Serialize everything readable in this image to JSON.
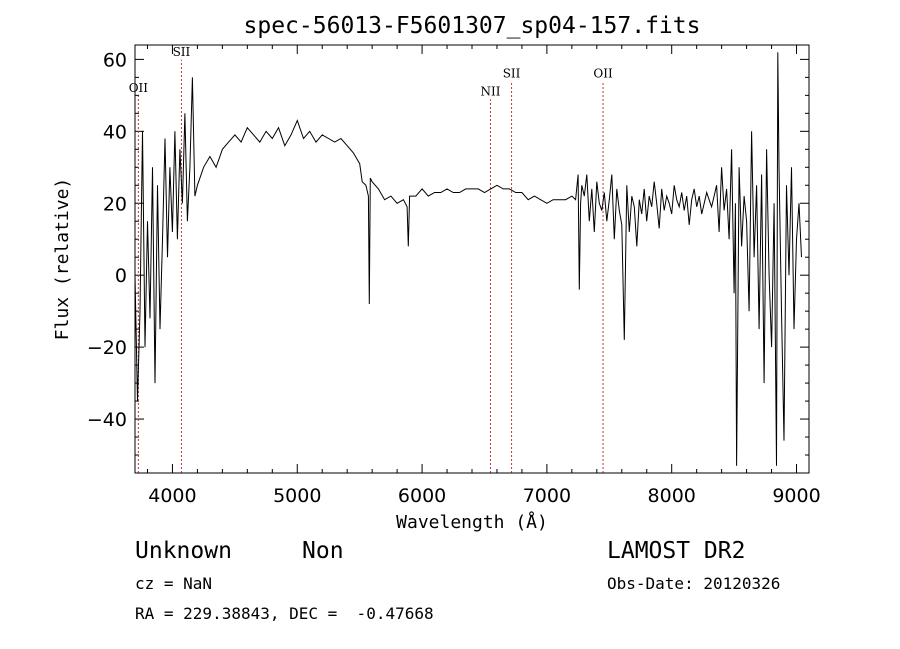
{
  "chart_data": {
    "type": "line",
    "title": "spec-56013-F5601307_sp04-157.fits",
    "xlabel": "Wavelength (Å)",
    "ylabel": "Flux (relative)",
    "xlim": [
      3700,
      9100
    ],
    "ylim": [
      -55,
      64
    ],
    "xticks": [
      4000,
      5000,
      6000,
      7000,
      8000,
      9000
    ],
    "yticks": [
      -40,
      -20,
      0,
      20,
      40,
      60
    ],
    "grid": false,
    "series": [
      {
        "color": "#000000",
        "x": [
          3700,
          3720,
          3740,
          3760,
          3780,
          3800,
          3820,
          3840,
          3860,
          3880,
          3900,
          3920,
          3940,
          3960,
          3980,
          4000,
          4020,
          4040,
          4060,
          4080,
          4100,
          4120,
          4140,
          4160,
          4180,
          4200,
          4250,
          4300,
          4350,
          4400,
          4450,
          4500,
          4550,
          4600,
          4650,
          4700,
          4750,
          4800,
          4850,
          4900,
          4950,
          5000,
          5050,
          5100,
          5150,
          5200,
          5250,
          5300,
          5350,
          5400,
          5450,
          5500,
          5520,
          5550,
          5570,
          5577,
          5585,
          5600,
          5650,
          5700,
          5750,
          5800,
          5850,
          5880,
          5890,
          5900,
          5950,
          6000,
          6050,
          6100,
          6150,
          6200,
          6250,
          6300,
          6350,
          6400,
          6450,
          6500,
          6550,
          6600,
          6650,
          6700,
          6750,
          6800,
          6850,
          6900,
          6950,
          7000,
          7050,
          7100,
          7150,
          7200,
          7230,
          7250,
          7260,
          7270,
          7280,
          7300,
          7320,
          7340,
          7360,
          7380,
          7400,
          7420,
          7440,
          7460,
          7480,
          7500,
          7520,
          7540,
          7560,
          7580,
          7600,
          7620,
          7640,
          7660,
          7680,
          7700,
          7720,
          7740,
          7760,
          7780,
          7800,
          7820,
          7840,
          7860,
          7880,
          7900,
          7920,
          7940,
          7960,
          7980,
          8000,
          8020,
          8040,
          8060,
          8080,
          8100,
          8120,
          8140,
          8160,
          8180,
          8200,
          8220,
          8240,
          8260,
          8280,
          8300,
          8320,
          8340,
          8360,
          8380,
          8400,
          8420,
          8440,
          8460,
          8480,
          8500,
          8510,
          8520,
          8540,
          8560,
          8580,
          8600,
          8620,
          8640,
          8660,
          8680,
          8700,
          8720,
          8740,
          8760,
          8780,
          8800,
          8820,
          8840,
          8850,
          8860,
          8880,
          8900,
          8920,
          8940,
          8960,
          8980,
          9000,
          9020,
          9040
        ],
        "y": [
          0,
          -35,
          -10,
          40,
          -20,
          15,
          -12,
          30,
          -30,
          25,
          -15,
          10,
          38,
          5,
          30,
          12,
          40,
          10,
          35,
          20,
          45,
          15,
          30,
          55,
          22,
          25,
          30,
          33,
          30,
          35,
          37,
          39,
          37,
          41,
          39,
          37,
          40,
          38,
          41,
          36,
          39,
          43,
          38,
          40,
          37,
          39,
          38,
          37,
          38,
          36,
          34,
          31,
          26,
          25,
          22,
          -8,
          27,
          26,
          24,
          21,
          22,
          20,
          21,
          19,
          8,
          22,
          22,
          24,
          22,
          23,
          23,
          24,
          23,
          23,
          24,
          24,
          24,
          23,
          24,
          25,
          24,
          24,
          23,
          23,
          21,
          22,
          21,
          20,
          21,
          21,
          21,
          22,
          21,
          28,
          -4,
          20,
          25,
          22,
          28,
          15,
          24,
          12,
          26,
          20,
          18,
          23,
          15,
          21,
          28,
          10,
          24,
          18,
          14,
          -18,
          25,
          12,
          22,
          19,
          8,
          21,
          17,
          24,
          15,
          22,
          19,
          26,
          20,
          13,
          24,
          18,
          22,
          20,
          17,
          25,
          21,
          19,
          23,
          18,
          22,
          14,
          21,
          24,
          19,
          22,
          17,
          20,
          23,
          21,
          19,
          22,
          25,
          12,
          30,
          18,
          24,
          10,
          35,
          -5,
          20,
          -53,
          30,
          8,
          22,
          15,
          -10,
          40,
          5,
          25,
          -15,
          28,
          -30,
          35,
          0,
          -20,
          20,
          -53,
          62,
          30,
          -10,
          -46,
          25,
          0,
          30,
          -15,
          10,
          20,
          5
        ]
      }
    ],
    "line_markers": [
      {
        "label": "OII",
        "x": 3727,
        "label_y": 51
      },
      {
        "label": "SII",
        "x": 4072,
        "label_y": 61
      },
      {
        "label": "NII",
        "x": 6548,
        "label_y": 50
      },
      {
        "label": "SII",
        "x": 6717,
        "label_y": 55
      },
      {
        "label": "OII",
        "x": 7450,
        "label_y": 55
      }
    ]
  },
  "info": {
    "class_text": "Unknown",
    "subclass_text": "Non",
    "survey_text": "LAMOST DR2",
    "cz_text": "cz = NaN",
    "obs_date_text": "Obs-Date: 20120326",
    "coords_text": "RA = 229.38843, DEC =  -0.47668"
  }
}
